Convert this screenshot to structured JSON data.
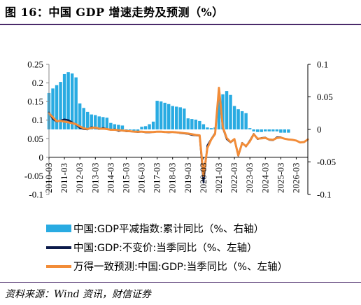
{
  "title": "图 16：中国 GDP 增速走势及预测（%）",
  "source": "资料来源：Wind 资讯，财信证券",
  "colors": {
    "bars": "#29abe2",
    "actual": "#0b1a4a",
    "forecast": "#f28c38",
    "rule": "#4a2a6a"
  },
  "chart_data": {
    "type": "bar+line",
    "left_axis": {
      "min": -0.1,
      "max": 0.25,
      "ticks": [
        "-0.1",
        "-0.05",
        "0",
        "0.05",
        "0.1",
        "0.15",
        "0.2",
        "0.25"
      ]
    },
    "right_axis": {
      "min": -0.1,
      "max": 0.1,
      "ticks": [
        "-0.1",
        "-0.05",
        "0",
        "0.05",
        "0.1"
      ]
    },
    "x_ticks": [
      "2010-03",
      "2011-03",
      "2012-03",
      "2013-03",
      "2014-03",
      "2015-03",
      "2016-03",
      "2017-03",
      "2018-03",
      "2019-03",
      "2020-03",
      "2021-03",
      "2022-03",
      "2023-03",
      "2024-03",
      "2025-03",
      "2026-03"
    ],
    "x_range": [
      "2010-03",
      "2026-12"
    ],
    "grid": false,
    "legend_position": "bottom",
    "series": [
      {
        "name": "中国:GDP平减指数:累计同比（%、右轴）",
        "kind": "bar",
        "axis": "right",
        "x": [
          "2010-03",
          "2010-06",
          "2010-09",
          "2010-12",
          "2011-03",
          "2011-06",
          "2011-09",
          "2011-12",
          "2012-03",
          "2012-06",
          "2012-09",
          "2012-12",
          "2013-03",
          "2013-06",
          "2013-09",
          "2013-12",
          "2014-03",
          "2014-06",
          "2014-09",
          "2014-12",
          "2015-03",
          "2015-06",
          "2015-09",
          "2015-12",
          "2016-03",
          "2016-06",
          "2016-09",
          "2016-12",
          "2017-03",
          "2017-06",
          "2017-09",
          "2017-12",
          "2018-03",
          "2018-06",
          "2018-09",
          "2018-12",
          "2019-03",
          "2019-06",
          "2019-09",
          "2019-12",
          "2020-03",
          "2020-06",
          "2020-09",
          "2020-12",
          "2021-03",
          "2021-06",
          "2021-09",
          "2021-12",
          "2022-03",
          "2022-06",
          "2022-09",
          "2022-12",
          "2023-03",
          "2023-06",
          "2023-09",
          "2023-12",
          "2024-03",
          "2024-06",
          "2024-09",
          "2024-12",
          "2025-03",
          "2025-06",
          "2025-09"
        ],
        "values": [
          0.056,
          0.063,
          0.068,
          0.073,
          0.085,
          0.088,
          0.086,
          0.08,
          0.04,
          0.033,
          0.027,
          0.023,
          0.022,
          0.02,
          0.019,
          0.018,
          0.01,
          0.008,
          0.007,
          0.006,
          -0.001,
          -0.001,
          -0.002,
          -0.003,
          0.004,
          0.005,
          0.008,
          0.012,
          0.044,
          0.043,
          0.041,
          0.039,
          0.036,
          0.035,
          0.034,
          0.032,
          0.017,
          0.016,
          0.015,
          0.013,
          0.008,
          0.003,
          0.002,
          0.003,
          0.05,
          0.054,
          0.059,
          0.053,
          0.036,
          0.031,
          0.028,
          0.025,
          0.002,
          -0.003,
          -0.004,
          -0.004,
          -0.003,
          -0.003,
          -0.003,
          -0.003,
          -0.005,
          -0.005,
          -0.005
        ]
      },
      {
        "name": "中国:GDP:不变价:当季同比（%、左轴）",
        "kind": "line",
        "axis": "left",
        "x": [
          "2010-03",
          "2010-06",
          "2010-09",
          "2010-12",
          "2011-03",
          "2011-06",
          "2011-09",
          "2011-12",
          "2012-03",
          "2012-06",
          "2012-09",
          "2012-12",
          "2013-03",
          "2013-06",
          "2013-09",
          "2013-12",
          "2014-03",
          "2014-06",
          "2014-09",
          "2014-12",
          "2015-03",
          "2015-06",
          "2015-09",
          "2015-12",
          "2016-03",
          "2016-06",
          "2016-09",
          "2016-12",
          "2017-03",
          "2017-06",
          "2017-09",
          "2017-12",
          "2018-03",
          "2018-06",
          "2018-09",
          "2018-12",
          "2019-03",
          "2019-06",
          "2019-09",
          "2019-12",
          "2020-03",
          "2020-06",
          "2020-09",
          "2020-12",
          "2021-03",
          "2021-06",
          "2021-09",
          "2021-12",
          "2022-03",
          "2022-06",
          "2022-09",
          "2022-12",
          "2023-03",
          "2023-06",
          "2023-09",
          "2023-12",
          "2024-03",
          "2024-06",
          "2024-09",
          "2024-12",
          "2025-03"
        ],
        "values": [
          0.121,
          0.103,
          0.096,
          0.099,
          0.102,
          0.1,
          0.094,
          0.088,
          0.079,
          0.076,
          0.075,
          0.081,
          0.079,
          0.076,
          0.079,
          0.076,
          0.074,
          0.075,
          0.071,
          0.072,
          0.07,
          0.07,
          0.069,
          0.068,
          0.069,
          0.067,
          0.067,
          0.068,
          0.069,
          0.069,
          0.068,
          0.067,
          0.068,
          0.067,
          0.065,
          0.064,
          0.063,
          0.06,
          0.059,
          0.058,
          -0.068,
          0.032,
          0.049,
          0.065,
          0.183,
          0.079,
          0.049,
          0.04,
          0.048,
          0.004,
          0.039,
          0.029,
          0.045,
          0.063,
          0.049,
          0.052,
          0.053,
          0.047,
          0.046,
          0.054,
          0.054
        ]
      },
      {
        "name": "万得一致预测:中国:GDP:当季同比（%、左轴）",
        "kind": "line",
        "axis": "left",
        "x": [
          "2010-03",
          "2010-06",
          "2010-09",
          "2010-12",
          "2011-03",
          "2011-06",
          "2011-09",
          "2011-12",
          "2012-03",
          "2012-06",
          "2012-09",
          "2012-12",
          "2013-03",
          "2013-06",
          "2013-09",
          "2013-12",
          "2014-03",
          "2014-06",
          "2014-09",
          "2014-12",
          "2015-03",
          "2015-06",
          "2015-09",
          "2015-12",
          "2016-03",
          "2016-06",
          "2016-09",
          "2016-12",
          "2017-03",
          "2017-06",
          "2017-09",
          "2017-12",
          "2018-03",
          "2018-06",
          "2018-09",
          "2018-12",
          "2019-03",
          "2019-06",
          "2019-09",
          "2019-12",
          "2020-03",
          "2020-06",
          "2020-09",
          "2020-12",
          "2021-03",
          "2021-06",
          "2021-09",
          "2021-12",
          "2022-03",
          "2022-06",
          "2022-09",
          "2022-12",
          "2023-03",
          "2023-06",
          "2023-09",
          "2023-12",
          "2024-03",
          "2024-06",
          "2024-09",
          "2024-12",
          "2025-03",
          "2025-06",
          "2025-09",
          "2025-12",
          "2026-03",
          "2026-06",
          "2026-09",
          "2026-12"
        ],
        "values": [
          0.118,
          0.108,
          0.097,
          0.098,
          0.096,
          0.094,
          0.092,
          0.089,
          0.083,
          0.078,
          0.076,
          0.079,
          0.08,
          0.077,
          0.077,
          0.076,
          0.074,
          0.074,
          0.073,
          0.072,
          0.071,
          0.07,
          0.069,
          0.069,
          0.069,
          0.068,
          0.068,
          0.068,
          0.069,
          0.069,
          0.068,
          0.068,
          0.068,
          0.067,
          0.066,
          0.065,
          0.064,
          0.062,
          0.06,
          0.059,
          -0.05,
          0.025,
          0.048,
          0.063,
          0.187,
          0.081,
          0.052,
          0.041,
          0.049,
          0.005,
          0.038,
          0.03,
          0.043,
          0.062,
          0.05,
          0.051,
          0.052,
          0.048,
          0.047,
          0.052,
          0.053,
          0.05,
          0.048,
          0.047,
          0.045,
          0.04,
          0.041,
          0.048
        ]
      }
    ]
  }
}
